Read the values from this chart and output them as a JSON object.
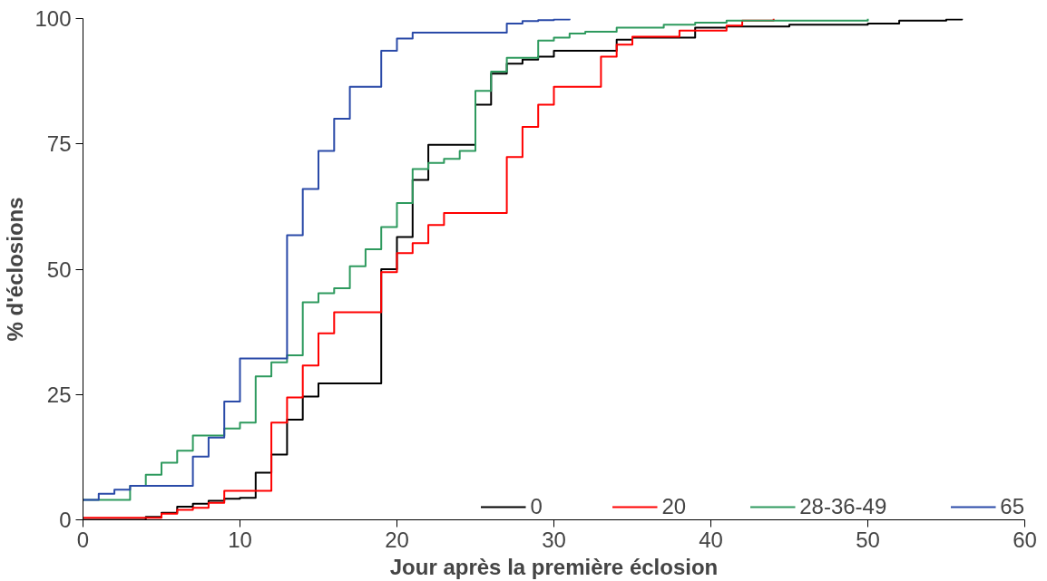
{
  "chart_data": {
    "type": "step",
    "xlabel": "Jour après la première éclosion",
    "ylabel": "% d'éclosions",
    "xlim": [
      0,
      60
    ],
    "xticks": [
      0,
      10,
      20,
      30,
      40,
      50,
      60
    ],
    "ylim": [
      0,
      100
    ],
    "yticks": [
      0,
      25,
      50,
      75,
      100
    ],
    "grid": false,
    "legend": "bottom right",
    "line_style": "solid",
    "marker": "none",
    "series": [
      {
        "name": "0",
        "color": "#000000",
        "x": [
          0,
          4,
          5,
          6,
          7,
          8,
          9,
          10,
          11,
          12,
          13,
          14,
          15,
          19,
          20,
          21,
          22,
          25,
          26,
          27,
          28,
          29,
          30,
          34,
          35,
          39,
          41,
          45,
          50,
          52,
          55,
          56
        ],
        "values": [
          0,
          0.6,
          1.4,
          2.6,
          3.2,
          3.8,
          4.2,
          4.4,
          9.4,
          13,
          20,
          24.6,
          27.2,
          50,
          56.4,
          67.8,
          74.8,
          82.8,
          89,
          91,
          91.8,
          92.4,
          93.6,
          95.8,
          96.2,
          98.2,
          98.4,
          98.8,
          99,
          99.6,
          99.8,
          100
        ]
      },
      {
        "name": "20",
        "color": "#ff0000",
        "x": [
          0,
          5,
          6,
          7,
          8,
          9,
          12,
          13,
          14,
          15,
          16,
          19,
          20,
          21,
          22,
          23,
          27,
          28,
          29,
          30,
          33,
          34,
          35,
          38,
          41,
          42,
          44
        ],
        "values": [
          0.4,
          1.2,
          2,
          2.4,
          3.4,
          5.8,
          19.4,
          24.4,
          30.8,
          37.2,
          41.4,
          49.4,
          53.2,
          55.2,
          58.8,
          61.2,
          72.4,
          78.4,
          82.8,
          86.4,
          92.4,
          94.8,
          96.4,
          97.6,
          98.6,
          99.6,
          100
        ]
      },
      {
        "name": "28-36-49",
        "color": "#2e9a5e",
        "x": [
          0,
          3,
          4,
          5,
          6,
          7,
          9,
          10,
          11,
          12,
          13,
          14,
          15,
          16,
          17,
          18,
          19,
          20,
          21,
          22,
          23,
          24,
          25,
          26,
          27,
          29,
          30,
          31,
          32,
          34,
          37,
          39,
          41,
          50
        ],
        "values": [
          4,
          6.8,
          9,
          11.4,
          13.8,
          16.8,
          18.2,
          19.4,
          28.6,
          31.4,
          32.8,
          43.4,
          45.2,
          46.2,
          50.6,
          54,
          58.4,
          63.2,
          70,
          71.2,
          72,
          73.6,
          85.6,
          89.4,
          92.2,
          95.6,
          96.2,
          97,
          97.4,
          98.2,
          98.8,
          99.2,
          99.6,
          100
        ]
      },
      {
        "name": "65",
        "color": "#2a4aa8",
        "x": [
          0,
          1,
          2,
          3,
          7,
          8,
          9,
          10,
          13,
          14,
          15,
          16,
          17,
          19,
          20,
          21,
          27,
          28,
          29,
          30,
          31
        ],
        "values": [
          4,
          5.2,
          6,
          6.8,
          12.6,
          16.4,
          23.6,
          32.2,
          56.8,
          66,
          73.6,
          80,
          86.4,
          93.6,
          96,
          97.2,
          99,
          99.5,
          99.7,
          99.8,
          100
        ]
      }
    ]
  }
}
